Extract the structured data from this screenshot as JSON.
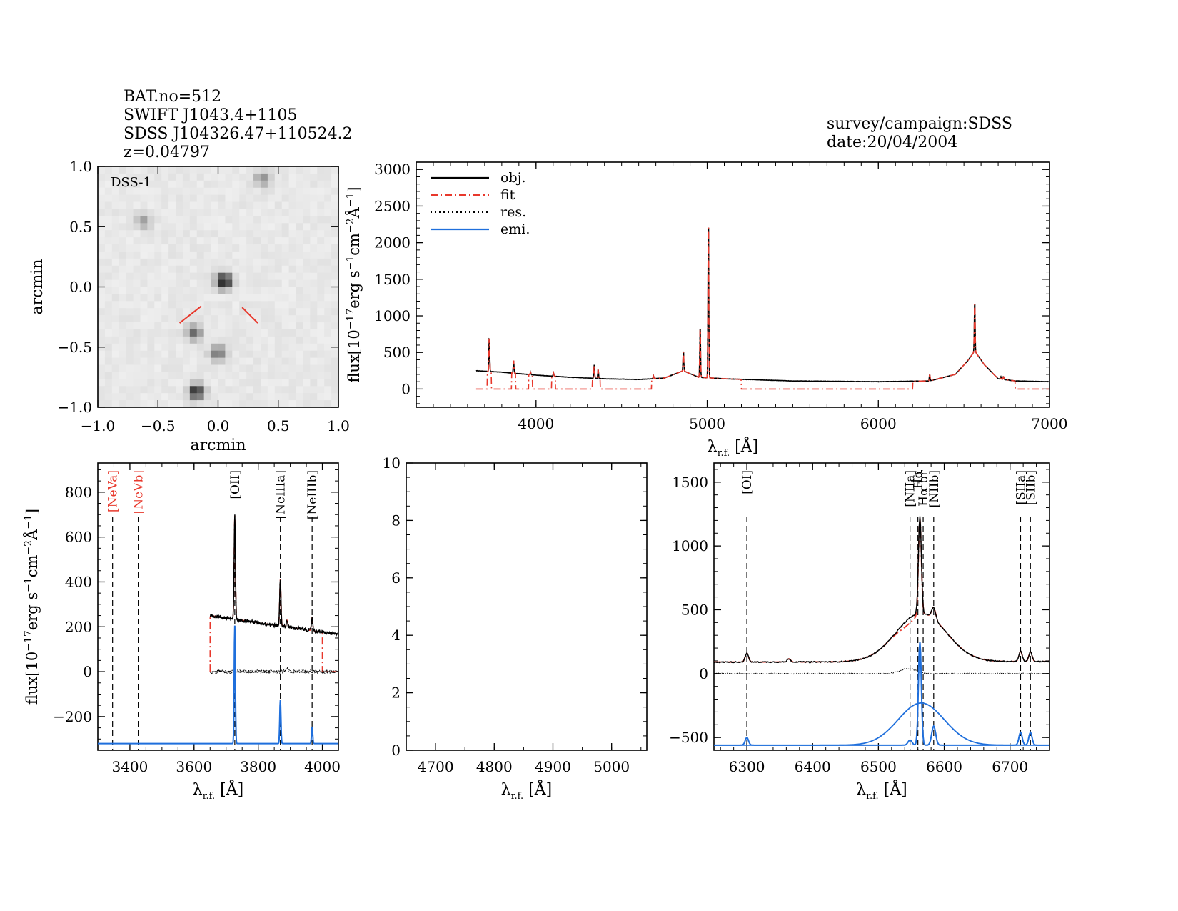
{
  "header": {
    "bat_no": "BAT.no=512",
    "swift_name": "SWIFT J1043.4+1105",
    "sdss_name": "SDSS J104326.47+110524.2",
    "redshift": "z=0.04797",
    "survey": "survey/campaign:SDSS",
    "date": "date:20/04/2004"
  },
  "colors": {
    "object": "#000000",
    "fit": "#e8382c",
    "residual": "#000000",
    "emission": "#1f6fdc"
  },
  "chart_data": [
    {
      "id": "image",
      "type": "heatmap",
      "label": "DSS-1",
      "xlabel": "arcmin",
      "ylabel": "arcmin",
      "xlim": [
        -1.0,
        1.0
      ],
      "ylim": [
        -1.0,
        1.0
      ],
      "xticks": [
        "−1.0",
        "−0.5",
        "0.0",
        "0.5",
        "1.0"
      ],
      "yticks": [
        "−1.0",
        "−0.5",
        "0.0",
        "0.5",
        "1.0"
      ],
      "sources": [
        {
          "x": 0.05,
          "y": 0.05,
          "brightness": 1.0
        },
        {
          "x": -0.18,
          "y": -0.87,
          "brightness": 0.9
        },
        {
          "x": -0.2,
          "y": -0.38,
          "brightness": 0.55
        },
        {
          "x": 0.0,
          "y": -0.55,
          "brightness": 0.55
        },
        {
          "x": 0.37,
          "y": 0.9,
          "brightness": 0.35
        },
        {
          "x": -0.62,
          "y": 0.55,
          "brightness": 0.3
        }
      ]
    },
    {
      "id": "full_spectrum",
      "type": "line",
      "xlabel": "λr.f. [Å]",
      "ylabel": "flux[10⁻¹⁷erg s⁻¹cm⁻²Å⁻¹]",
      "xlim": [
        3300,
        7000
      ],
      "ylim": [
        -250,
        3100
      ],
      "xticks": [
        4000,
        5000,
        6000,
        7000
      ],
      "yticks": [
        0,
        500,
        1000,
        1500,
        2000,
        2500,
        3000
      ],
      "legend": [
        "obj.",
        "fit",
        "res.",
        "emi."
      ],
      "legend_position": "top-left",
      "continuum": [
        [
          3650,
          250
        ],
        [
          3800,
          230
        ],
        [
          4000,
          190
        ],
        [
          4200,
          160
        ],
        [
          4400,
          140
        ],
        [
          4600,
          130
        ],
        [
          4750,
          150
        ],
        [
          4860,
          250
        ],
        [
          4950,
          160
        ],
        [
          5100,
          140
        ],
        [
          5500,
          110
        ],
        [
          6000,
          100
        ],
        [
          6300,
          110
        ],
        [
          6450,
          200
        ],
        [
          6520,
          380
        ],
        [
          6563,
          520
        ],
        [
          6620,
          330
        ],
        [
          6700,
          140
        ],
        [
          6800,
          110
        ],
        [
          7000,
          100
        ]
      ],
      "lines": [
        {
          "x": 3727,
          "peak": 730
        },
        {
          "x": 3869,
          "peak": 400
        },
        {
          "x": 3968,
          "peak": 230
        },
        {
          "x": 4102,
          "peak": 220
        },
        {
          "x": 4340,
          "peak": 330
        },
        {
          "x": 4363,
          "peak": 270
        },
        {
          "x": 4686,
          "peak": 180
        },
        {
          "x": 4861,
          "peak": 530
        },
        {
          "x": 4959,
          "peak": 880
        },
        {
          "x": 5007,
          "peak": 2420
        },
        {
          "x": 6300,
          "peak": 200
        },
        {
          "x": 6563,
          "peak": 1230
        },
        {
          "x": 6716,
          "peak": 170
        },
        {
          "x": 6731,
          "peak": 170
        }
      ],
      "fit_masked_ranges": [
        [
          3650,
          4000
        ],
        [
          4000,
          4680
        ],
        [
          5200,
          6200
        ],
        [
          6800,
          7000
        ]
      ]
    },
    {
      "id": "blue_zoom",
      "type": "line",
      "xlabel": "λr.f. [Å]",
      "ylabel": "flux[10⁻¹⁷erg s⁻¹cm⁻²Å⁻¹]",
      "xlim": [
        3300,
        4050
      ],
      "ylim": [
        -350,
        930
      ],
      "xticks": [
        3400,
        3600,
        3800,
        4000
      ],
      "yticks": [
        -200,
        0,
        200,
        400,
        600,
        800
      ],
      "markers": [
        {
          "x": 3346,
          "label": "[NeVa]",
          "color": "#e8382c"
        },
        {
          "x": 3426,
          "label": "[NeVb]",
          "color": "#e8382c"
        },
        {
          "x": 3727,
          "label": "[OII]",
          "color": "#000000"
        },
        {
          "x": 3869,
          "label": "[NeIIIa]",
          "color": "#000000"
        },
        {
          "x": 3968,
          "label": "[NeIIIb]",
          "color": "#000000"
        }
      ],
      "object_line": [
        [
          3650,
          250
        ],
        [
          3700,
          240
        ],
        [
          3727,
          710
        ],
        [
          3750,
          230
        ],
        [
          3869,
          440
        ],
        [
          3900,
          210
        ],
        [
          3968,
          230
        ],
        [
          4050,
          170
        ]
      ],
      "emission_peaks": [
        {
          "x": 3727,
          "peak": 205
        },
        {
          "x": 3869,
          "peak": -125
        },
        {
          "x": 3968,
          "peak": -245
        }
      ],
      "emission_baseline": -320
    },
    {
      "id": "hbeta_zoom",
      "type": "line",
      "xlabel": "λr.f. [Å]",
      "xlim": [
        4650,
        5060
      ],
      "ylim": [
        0,
        10
      ],
      "xticks": [
        4700,
        4800,
        4900,
        5000
      ],
      "yticks": [
        0,
        2,
        4,
        6,
        8,
        10
      ]
    },
    {
      "id": "halpha_zoom",
      "type": "line",
      "xlabel": "λr.f. [Å]",
      "xlim": [
        6250,
        6760
      ],
      "ylim": [
        -600,
        1650
      ],
      "xticks": [
        6300,
        6400,
        6500,
        6600,
        6700
      ],
      "yticks": [
        -500,
        0,
        500,
        1000,
        1500
      ],
      "markers": [
        {
          "x": 6300,
          "label": "[OI]"
        },
        {
          "x": 6548,
          "label": "[NIIa]"
        },
        {
          "x": 6560,
          "label": "Hα"
        },
        {
          "x": 6568,
          "label": "Hα br"
        },
        {
          "x": 6584,
          "label": "[NIIb]"
        },
        {
          "x": 6716,
          "label": "[SIIa]"
        },
        {
          "x": 6731,
          "label": "[SIIb]"
        }
      ],
      "object_line": [
        [
          6250,
          95
        ],
        [
          6290,
          100
        ],
        [
          6300,
          170
        ],
        [
          6310,
          100
        ],
        [
          6360,
          100
        ],
        [
          6364,
          125
        ],
        [
          6370,
          100
        ],
        [
          6420,
          120
        ],
        [
          6460,
          170
        ],
        [
          6500,
          270
        ],
        [
          6530,
          390
        ],
        [
          6550,
          470
        ],
        [
          6563,
          1230
        ],
        [
          6575,
          420
        ],
        [
          6584,
          480
        ],
        [
          6600,
          360
        ],
        [
          6630,
          250
        ],
        [
          6660,
          170
        ],
        [
          6700,
          110
        ],
        [
          6716,
          180
        ],
        [
          6725,
          120
        ],
        [
          6731,
          180
        ],
        [
          6760,
          100
        ]
      ],
      "broad_component": {
        "center": 6565,
        "sigma": 35,
        "peak": -230
      },
      "emission_baseline": -560
    }
  ]
}
